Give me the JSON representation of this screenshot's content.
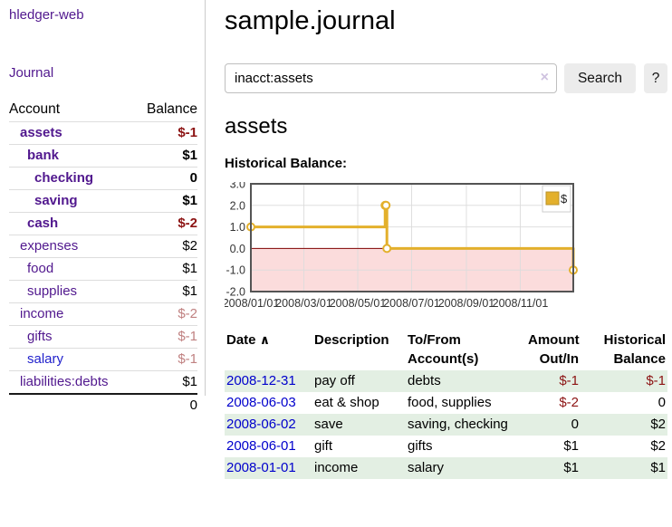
{
  "app": {
    "brand": "hledger-web"
  },
  "sidebar": {
    "nav": {
      "journal": "Journal"
    },
    "accounts_table": {
      "headers": {
        "account": "Account",
        "balance": "Balance"
      },
      "rows": [
        {
          "account": "assets",
          "balance": "$-1"
        },
        {
          "account": "bank",
          "balance": "$1"
        },
        {
          "account": "checking",
          "balance": "0"
        },
        {
          "account": "saving",
          "balance": "$1"
        },
        {
          "account": "cash",
          "balance": "$-2"
        },
        {
          "account": "expenses",
          "balance": "$2"
        },
        {
          "account": "food",
          "balance": "$1"
        },
        {
          "account": "supplies",
          "balance": "$1"
        },
        {
          "account": "income",
          "balance": "$-2"
        },
        {
          "account": "gifts",
          "balance": "$-1"
        },
        {
          "account": "salary",
          "balance": "$-1"
        },
        {
          "account": "liabilities:debts",
          "balance": "$1"
        }
      ],
      "total": "0"
    }
  },
  "header": {
    "title": "sample.journal"
  },
  "search": {
    "value": "inacct:assets",
    "clear_icon": "×",
    "button_label": "Search",
    "help_label": "?"
  },
  "account_page": {
    "title": "assets",
    "chart_label": "Historical Balance:"
  },
  "chart_data": {
    "type": "line",
    "step": true,
    "title": "Historical Balance",
    "series": [
      {
        "name": "$",
        "color": "#e3b02c",
        "points": [
          [
            "2008-01-01",
            1
          ],
          [
            "2008-06-01",
            2
          ],
          [
            "2008-06-02",
            2
          ],
          [
            "2008-06-03",
            0
          ],
          [
            "2008-12-31",
            -1
          ]
        ]
      }
    ],
    "x_start": "2008-01-01",
    "x_end": "2008-12-31",
    "ylim": [
      -2.0,
      3.0
    ],
    "yticks": [
      3.0,
      2.0,
      1.0,
      0.0,
      -1.0,
      -2.0
    ],
    "xticks": [
      {
        "date": "2008-01-01",
        "label": "2008/01/01"
      },
      {
        "date": "2008-03-01",
        "label": "2008/03/01"
      },
      {
        "date": "2008-05-01",
        "label": "2008/05/01"
      },
      {
        "date": "2008-07-01",
        "label": "2008/07/01"
      },
      {
        "date": "2008-09-01",
        "label": "2008/09/01"
      },
      {
        "date": "2008-11-01",
        "label": "2008/11/01"
      }
    ],
    "grid": true,
    "legend_position": "top-right",
    "negative_fill": "#fbdcdc",
    "zero_line_color": "#7f0000"
  },
  "register": {
    "headers": {
      "date": "Date",
      "date_sort_icon": "∧",
      "description": "Description",
      "accounts": "To/From Account(s)",
      "amount": "Amount Out/In",
      "balance": "Historical Balance"
    },
    "rows": [
      {
        "date": "2008-12-31",
        "description": "pay off",
        "accounts": "debts",
        "amount": "$-1",
        "balance": "$-1"
      },
      {
        "date": "2008-06-03",
        "description": "eat & shop",
        "accounts": "food, supplies",
        "amount": "$-2",
        "balance": "0"
      },
      {
        "date": "2008-06-02",
        "description": "save",
        "accounts": "saving, checking",
        "amount": "0",
        "balance": "$2"
      },
      {
        "date": "2008-06-01",
        "description": "gift",
        "accounts": "gifts",
        "amount": "$1",
        "balance": "$2"
      },
      {
        "date": "2008-01-01",
        "description": "income",
        "accounts": "salary",
        "amount": "$1",
        "balance": "$1"
      }
    ]
  },
  "colors": {
    "link_purple": "#51188e",
    "link_blue": "#0000cc",
    "negative_strong": "#8c1313",
    "negative_soft": "#c08181",
    "chart_line": "#e3b02c",
    "chart_negative_region": "#fbdcdc",
    "row_shade_green": "#e3efe3"
  }
}
